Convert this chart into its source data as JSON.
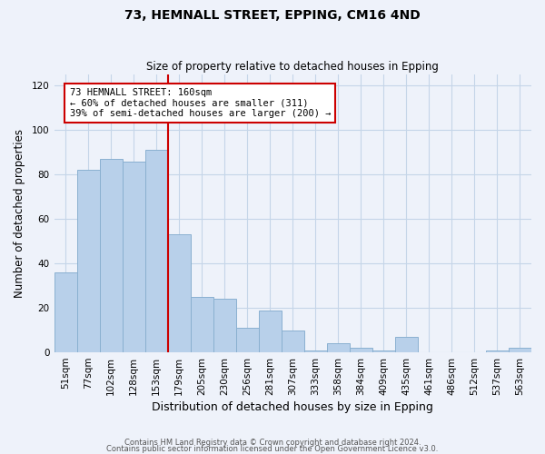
{
  "title": "73, HEMNALL STREET, EPPING, CM16 4ND",
  "subtitle": "Size of property relative to detached houses in Epping",
  "xlabel": "Distribution of detached houses by size in Epping",
  "ylabel": "Number of detached properties",
  "bar_labels": [
    "51sqm",
    "77sqm",
    "102sqm",
    "128sqm",
    "153sqm",
    "179sqm",
    "205sqm",
    "230sqm",
    "256sqm",
    "281sqm",
    "307sqm",
    "333sqm",
    "358sqm",
    "384sqm",
    "409sqm",
    "435sqm",
    "461sqm",
    "486sqm",
    "512sqm",
    "537sqm",
    "563sqm"
  ],
  "bar_values": [
    36,
    82,
    87,
    86,
    91,
    53,
    25,
    24,
    11,
    19,
    10,
    1,
    4,
    2,
    1,
    7,
    0,
    0,
    0,
    1,
    2
  ],
  "bar_color": "#b8d0ea",
  "bar_edge_color": "#8ab0d0",
  "vline_x": 4.5,
  "vline_color": "#cc0000",
  "annotation_text": "73 HEMNALL STREET: 160sqm\n← 60% of detached houses are smaller (311)\n39% of semi-detached houses are larger (200) →",
  "annotation_box_color": "#ffffff",
  "annotation_box_edge": "#cc0000",
  "ylim": [
    0,
    125
  ],
  "yticks": [
    0,
    20,
    40,
    60,
    80,
    100,
    120
  ],
  "footer_line1": "Contains HM Land Registry data © Crown copyright and database right 2024.",
  "footer_line2": "Contains public sector information licensed under the Open Government Licence v3.0.",
  "bg_color": "#eef2fa",
  "grid_color": "#c5d5e8"
}
